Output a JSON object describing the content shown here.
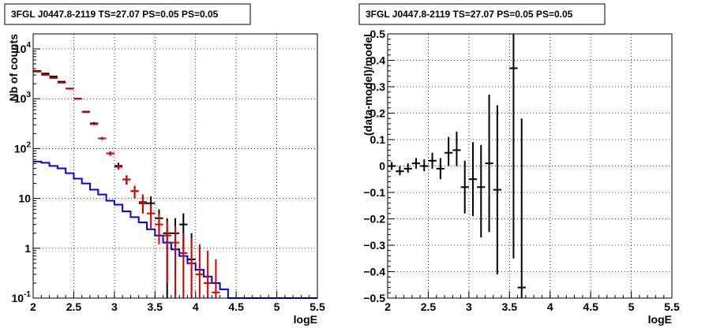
{
  "chart_data": [
    {
      "type": "line",
      "title": "3FGL J0447.8-2119 TS=27.07 PS=0.05 PS=0.05",
      "xlabel": "logE",
      "ylabel": "Nb of counts",
      "log_y": true,
      "xlim": [
        2,
        5.5
      ],
      "ylim": [
        0.1,
        20000
      ],
      "grid": true,
      "x_ticks": [
        2,
        2.5,
        3,
        3.5,
        4,
        4.5,
        5,
        5.5
      ],
      "x_tick_labels": [
        "2",
        "2.5",
        "3",
        "3.5",
        "4",
        "4.5",
        "5",
        "5.5"
      ],
      "y_ticks": [
        0.1,
        1,
        10,
        100,
        1000,
        10000
      ],
      "y_tick_labels": [
        "10^-1",
        "1",
        "10",
        "10^2",
        "10^3",
        "10^4"
      ],
      "series": [
        {
          "style": "step",
          "color": "#0000ff",
          "bin_edges": [
            2.0,
            2.1,
            2.2,
            2.3,
            2.4,
            2.5,
            2.6,
            2.7,
            2.8,
            2.9,
            3.0,
            3.1,
            3.2,
            3.3,
            3.4,
            3.5,
            3.6,
            3.7,
            3.8,
            3.9,
            4.0,
            4.1,
            4.2,
            4.3,
            4.4,
            4.5,
            4.6,
            4.7,
            4.8,
            4.9,
            5.0,
            5.1,
            5.2,
            5.3,
            5.4,
            5.5
          ],
          "values": [
            55,
            52,
            45,
            40,
            32,
            25,
            20,
            15,
            12,
            9,
            7.5,
            5.5,
            4.2,
            3.3,
            2.4,
            1.8,
            1.3,
            0.95,
            0.7,
            0.5,
            0.37,
            0.27,
            0.2,
            0.15,
            0.1,
            0.1,
            0.1,
            0.1,
            0.1,
            0.1,
            0.1,
            0.1,
            0.1,
            0.1,
            0.1
          ]
        },
        {
          "style": "errorbar",
          "color": "#000000",
          "x": [
            2.05,
            2.15,
            2.25,
            2.35,
            2.45,
            2.55,
            2.65,
            2.75,
            2.85,
            2.95,
            3.05,
            3.15,
            3.25,
            3.35,
            3.45,
            3.55,
            3.65,
            3.75,
            3.85,
            3.95
          ],
          "y": [
            3600,
            3200,
            2800,
            2200,
            1600,
            1000,
            550,
            320,
            160,
            80,
            45,
            24,
            14,
            8,
            8,
            4,
            2,
            2,
            3,
            0.6
          ],
          "y_low": [
            3500,
            3100,
            2700,
            2150,
            1550,
            970,
            530,
            300,
            150,
            72,
            38,
            19,
            10,
            5,
            5,
            2,
            0.1,
            0.1,
            1,
            0.1
          ],
          "y_high": [
            3700,
            3300,
            2900,
            2250,
            1650,
            1030,
            570,
            340,
            170,
            88,
            52,
            29,
            18,
            11,
            11,
            6,
            4,
            4,
            5,
            2
          ]
        },
        {
          "style": "errorbar",
          "color": "#dd0000",
          "x": [
            2.05,
            2.15,
            2.25,
            2.35,
            2.45,
            2.55,
            2.65,
            2.75,
            2.85,
            2.95,
            3.05,
            3.15,
            3.25,
            3.35,
            3.45,
            3.55,
            3.65,
            3.75,
            3.85,
            3.95,
            4.05,
            4.15,
            4.25
          ],
          "y": [
            3500,
            3000,
            2600,
            2100,
            1600,
            1000,
            540,
            310,
            160,
            80,
            43,
            24,
            14,
            8.5,
            5,
            3,
            1.8,
            1.3,
            0.8,
            0.5,
            0.3,
            0.2,
            0.13
          ],
          "y_low": [
            3400,
            2950,
            2550,
            2050,
            1550,
            970,
            520,
            295,
            150,
            73,
            38,
            20,
            10,
            5,
            2.5,
            1.2,
            0.2,
            0.1,
            0.1,
            0.1,
            0.1,
            0.1,
            0.1
          ],
          "y_high": [
            3600,
            3050,
            2650,
            2150,
            1650,
            1030,
            560,
            325,
            170,
            88,
            48,
            28,
            18,
            12,
            7.5,
            5,
            3.5,
            2.8,
            2,
            1.6,
            1.2,
            0.9,
            0.6
          ]
        }
      ]
    },
    {
      "type": "scatter",
      "title": "3FGL J0447.8-2119 TS=27.07 PS=0.05 PS=0.05",
      "xlabel": "logE",
      "ylabel": "(data-model)/model",
      "xlim": [
        2,
        5.5
      ],
      "ylim": [
        -0.5,
        0.5
      ],
      "grid": true,
      "x_ticks": [
        2,
        2.5,
        3,
        3.5,
        4,
        4.5,
        5,
        5.5
      ],
      "x_tick_labels": [
        "2",
        "2.5",
        "3",
        "3.5",
        "4",
        "4.5",
        "5",
        "5.5"
      ],
      "y_ticks": [
        -0.5,
        -0.4,
        -0.3,
        -0.2,
        -0.1,
        0,
        0.1,
        0.2,
        0.3,
        0.4,
        0.5
      ],
      "y_tick_labels": [
        "−0.5",
        "−0.4",
        "−0.3",
        "−0.2",
        "−0.1",
        "0",
        "0.1",
        "0.2",
        "0.3",
        "0.4",
        "0.5"
      ],
      "series": [
        {
          "style": "errorbar",
          "color": "#000000",
          "x": [
            2.05,
            2.15,
            2.25,
            2.35,
            2.45,
            2.55,
            2.65,
            2.75,
            2.85,
            2.95,
            3.05,
            3.15,
            3.25,
            3.35,
            3.55,
            3.65
          ],
          "y": [
            0.0,
            -0.02,
            -0.01,
            0.01,
            0.0,
            0.02,
            -0.01,
            0.05,
            0.06,
            -0.08,
            -0.05,
            -0.08,
            0.01,
            -0.09,
            0.37,
            -0.46
          ],
          "y_low": [
            -0.015,
            -0.035,
            -0.025,
            -0.01,
            -0.02,
            -0.01,
            -0.05,
            0.0,
            0.0,
            -0.18,
            -0.19,
            -0.27,
            -0.25,
            -0.41,
            -0.35,
            -0.5
          ],
          "y_high": [
            0.015,
            0.0,
            0.01,
            0.03,
            0.025,
            0.05,
            0.03,
            0.11,
            0.13,
            0.02,
            0.09,
            0.08,
            0.27,
            0.23,
            0.5,
            0.18
          ]
        }
      ]
    }
  ]
}
